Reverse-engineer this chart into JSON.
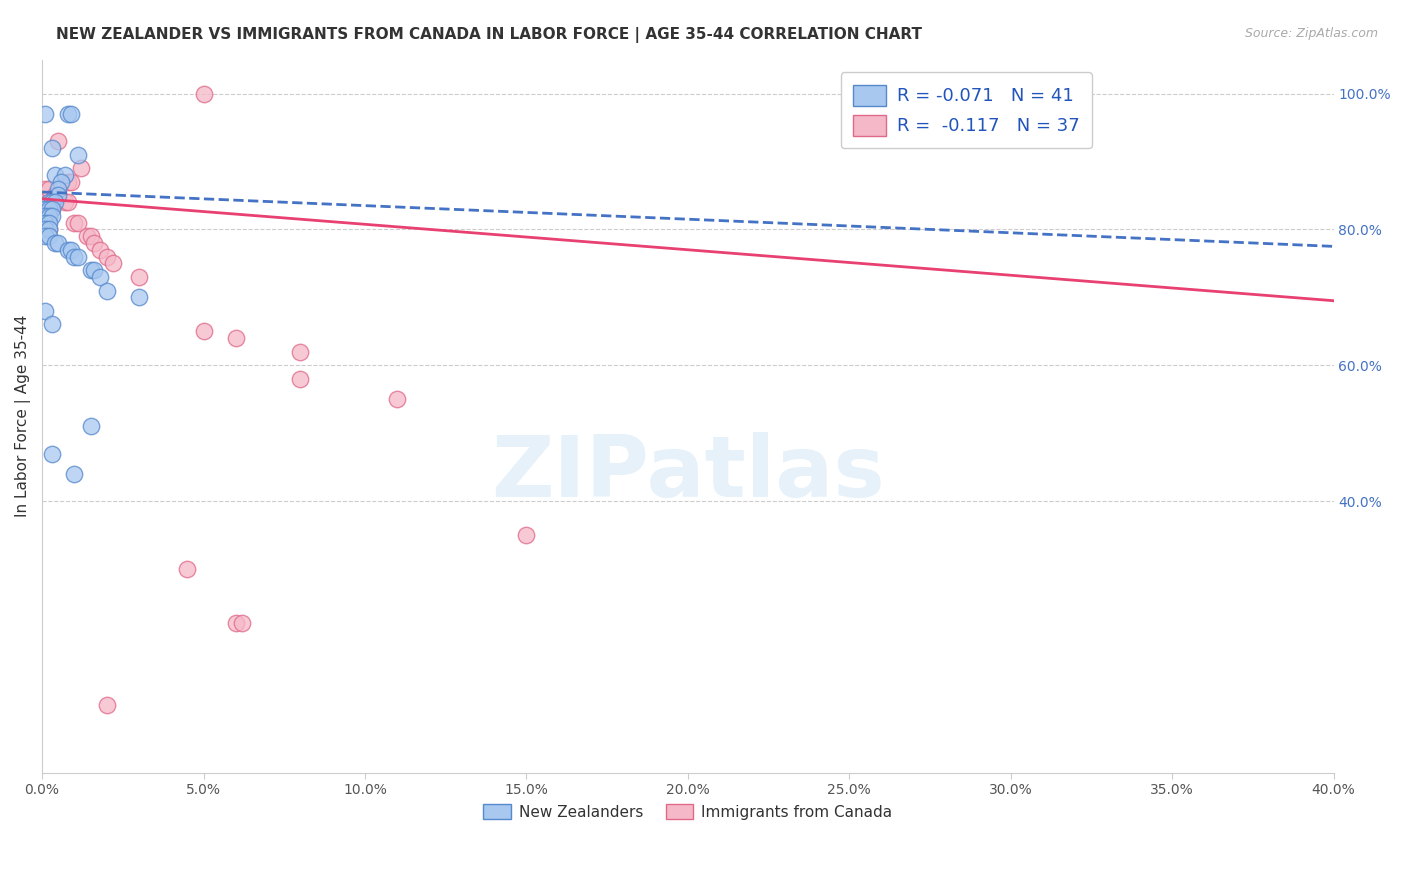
{
  "title": "NEW ZEALANDER VS IMMIGRANTS FROM CANADA IN LABOR FORCE | AGE 35-44 CORRELATION CHART",
  "source": "Source: ZipAtlas.com",
  "ylabel": "In Labor Force | Age 35-44",
  "xlim": [
    0.0,
    0.4
  ],
  "ylim": [
    0.0,
    1.05
  ],
  "xtick_positions": [
    0.0,
    0.05,
    0.1,
    0.15,
    0.2,
    0.25,
    0.3,
    0.35,
    0.4
  ],
  "xtick_labels": [
    "0.0%",
    "5.0%",
    "10.0%",
    "15.0%",
    "20.0%",
    "25.0%",
    "30.0%",
    "35.0%",
    "40.0%"
  ],
  "ytick_positions": [
    0.4,
    0.6,
    0.8,
    1.0
  ],
  "ytick_labels": [
    "40.0%",
    "60.0%",
    "80.0%",
    "100.0%"
  ],
  "blue_scatter": [
    [
      0.001,
      0.97
    ],
    [
      0.008,
      0.97
    ],
    [
      0.009,
      0.97
    ],
    [
      0.003,
      0.92
    ],
    [
      0.011,
      0.91
    ],
    [
      0.004,
      0.88
    ],
    [
      0.007,
      0.88
    ],
    [
      0.006,
      0.87
    ],
    [
      0.005,
      0.86
    ],
    [
      0.005,
      0.85
    ],
    [
      0.002,
      0.84
    ],
    [
      0.003,
      0.84
    ],
    [
      0.004,
      0.84
    ],
    [
      0.001,
      0.83
    ],
    [
      0.002,
      0.83
    ],
    [
      0.003,
      0.83
    ],
    [
      0.001,
      0.82
    ],
    [
      0.002,
      0.82
    ],
    [
      0.003,
      0.82
    ],
    [
      0.001,
      0.81
    ],
    [
      0.002,
      0.81
    ],
    [
      0.001,
      0.8
    ],
    [
      0.002,
      0.8
    ],
    [
      0.001,
      0.79
    ],
    [
      0.002,
      0.79
    ],
    [
      0.004,
      0.78
    ],
    [
      0.005,
      0.78
    ],
    [
      0.008,
      0.77
    ],
    [
      0.009,
      0.77
    ],
    [
      0.01,
      0.76
    ],
    [
      0.011,
      0.76
    ],
    [
      0.015,
      0.74
    ],
    [
      0.016,
      0.74
    ],
    [
      0.018,
      0.73
    ],
    [
      0.02,
      0.71
    ],
    [
      0.03,
      0.7
    ],
    [
      0.001,
      0.68
    ],
    [
      0.003,
      0.66
    ],
    [
      0.015,
      0.51
    ],
    [
      0.003,
      0.47
    ],
    [
      0.01,
      0.44
    ]
  ],
  "pink_scatter": [
    [
      0.05,
      1.0
    ],
    [
      0.005,
      0.93
    ],
    [
      0.012,
      0.89
    ],
    [
      0.008,
      0.87
    ],
    [
      0.009,
      0.87
    ],
    [
      0.001,
      0.86
    ],
    [
      0.002,
      0.86
    ],
    [
      0.004,
      0.85
    ],
    [
      0.005,
      0.85
    ],
    [
      0.007,
      0.84
    ],
    [
      0.008,
      0.84
    ],
    [
      0.001,
      0.83
    ],
    [
      0.002,
      0.83
    ],
    [
      0.003,
      0.83
    ],
    [
      0.001,
      0.82
    ],
    [
      0.002,
      0.82
    ],
    [
      0.01,
      0.81
    ],
    [
      0.011,
      0.81
    ],
    [
      0.001,
      0.8
    ],
    [
      0.002,
      0.8
    ],
    [
      0.014,
      0.79
    ],
    [
      0.015,
      0.79
    ],
    [
      0.016,
      0.78
    ],
    [
      0.018,
      0.77
    ],
    [
      0.02,
      0.76
    ],
    [
      0.022,
      0.75
    ],
    [
      0.03,
      0.73
    ],
    [
      0.05,
      0.65
    ],
    [
      0.06,
      0.64
    ],
    [
      0.08,
      0.62
    ],
    [
      0.08,
      0.58
    ],
    [
      0.11,
      0.55
    ],
    [
      0.15,
      0.35
    ],
    [
      0.045,
      0.3
    ],
    [
      0.06,
      0.22
    ],
    [
      0.062,
      0.22
    ],
    [
      0.02,
      0.1
    ]
  ],
  "blue_line": [
    [
      0.0,
      0.855
    ],
    [
      0.4,
      0.775
    ]
  ],
  "pink_line": [
    [
      0.0,
      0.845
    ],
    [
      0.4,
      0.695
    ]
  ],
  "blue_color": "#a8c8f0",
  "pink_color": "#f5b8c8",
  "blue_edge_color": "#5588cc",
  "pink_edge_color": "#e06888",
  "blue_line_color": "#4472c4",
  "pink_line_color": "#e84070",
  "R_blue": "-0.071",
  "N_blue": "41",
  "R_pink": "-0.117",
  "N_pink": "37",
  "watermark": "ZIPatlas",
  "legend_bottom_labels": [
    "New Zealanders",
    "Immigrants from Canada"
  ],
  "title_fontsize": 11,
  "axis_label_fontsize": 11,
  "tick_fontsize": 10,
  "source_fontsize": 9
}
